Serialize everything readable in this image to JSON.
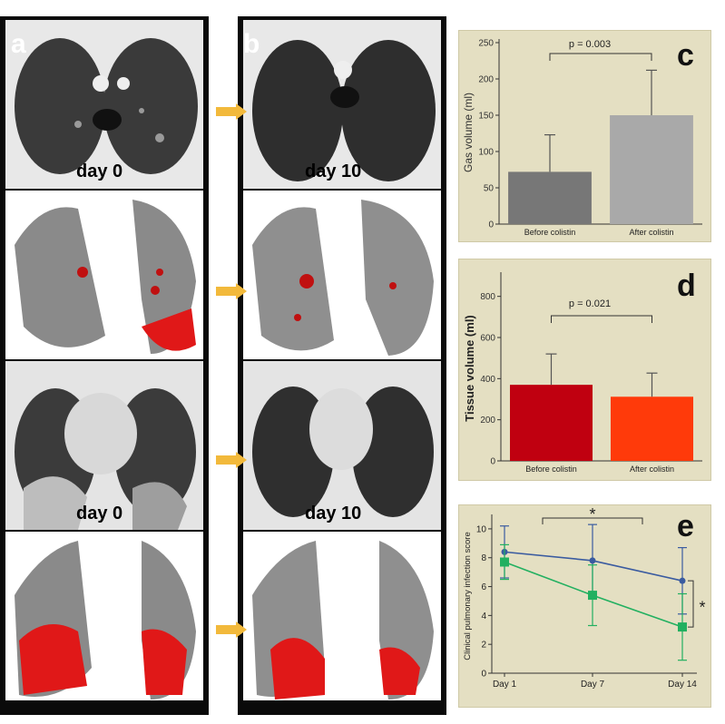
{
  "panels": {
    "a_label": "a",
    "b_label": "b",
    "day0_top": "day 0",
    "day10_top": "day 10",
    "day0_bottom": "day 0",
    "day10_bottom": "day 10"
  },
  "chart_data": [
    {
      "id": "c",
      "type": "bar",
      "categories": [
        "Before colistin",
        "After colistin"
      ],
      "values": [
        72,
        150
      ],
      "errors": [
        51,
        62
      ],
      "colors": [
        "#777777",
        "#a9a9a9"
      ],
      "ylabel": "Gas volume (ml)",
      "ylim": [
        0,
        250
      ],
      "yticks": [
        0,
        50,
        100,
        150,
        200,
        250
      ],
      "annotation": "p = 0.003",
      "panel_letter": "c"
    },
    {
      "id": "d",
      "type": "bar",
      "categories": [
        "Before colistin",
        "After colistin"
      ],
      "values": [
        370,
        312
      ],
      "errors": [
        150,
        115
      ],
      "colors": [
        "#c00010",
        "#ff3a0a"
      ],
      "ylabel": "Tissue volume (ml)",
      "ylim": [
        0,
        900
      ],
      "yticks": [
        0,
        200,
        400,
        600,
        800
      ],
      "annotation": "p = 0.021",
      "panel_letter": "d"
    },
    {
      "id": "e",
      "type": "line",
      "categories": [
        "Day 1",
        "Day 7",
        "Day 14"
      ],
      "series": [
        {
          "values": [
            8.4,
            7.8,
            6.4
          ],
          "errors": [
            1.8,
            2.5,
            2.3
          ],
          "color": "#3a5ba0",
          "marker": "circle"
        },
        {
          "values": [
            7.7,
            5.4,
            3.2
          ],
          "errors": [
            1.2,
            2.1,
            2.3
          ],
          "color": "#22b060",
          "marker": "square"
        }
      ],
      "ylabel": "Clinical pulmonary infection score",
      "ylim": [
        0,
        11
      ],
      "yticks": [
        0,
        2,
        4,
        6,
        8,
        10
      ],
      "annotations": [
        "*",
        "*"
      ],
      "panel_letter": "e"
    }
  ]
}
